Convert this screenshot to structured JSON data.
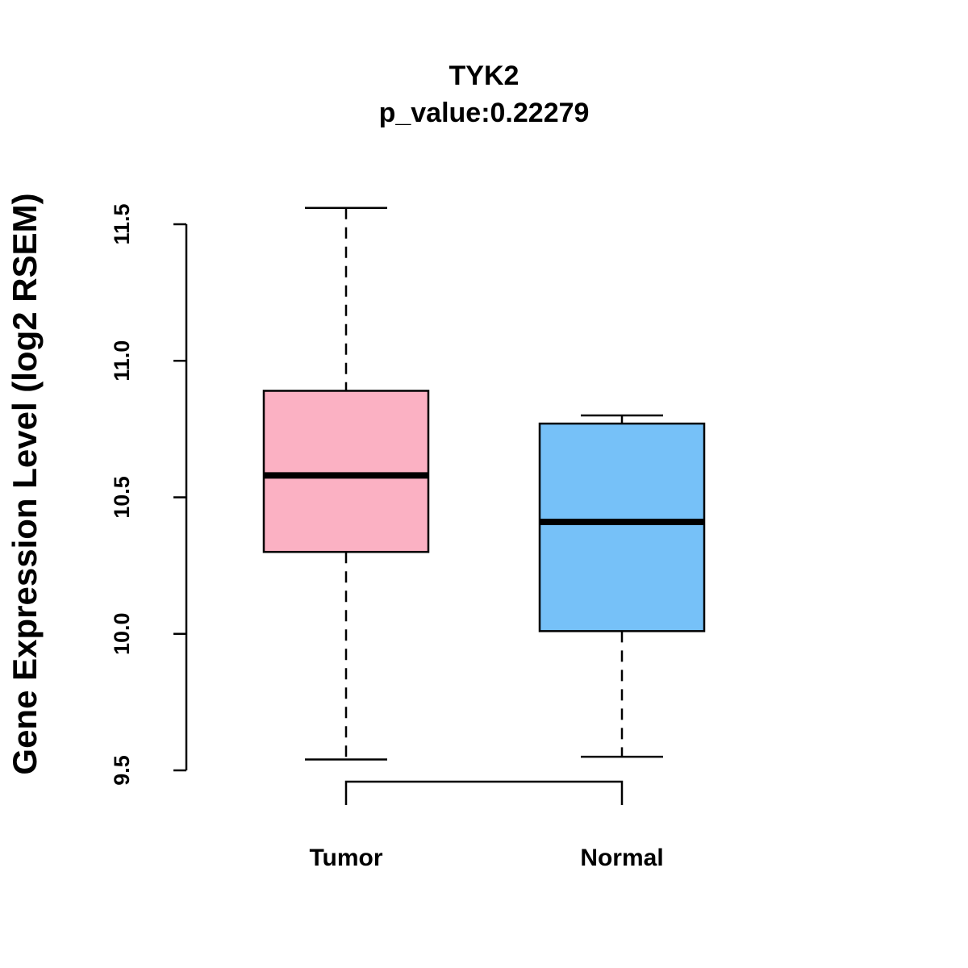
{
  "chart_data": {
    "type": "boxplot",
    "title": "TYK2",
    "subtitle": "p_value:0.22279",
    "xlabel": "",
    "ylabel": "Gene Expression Level (log2 RSEM)",
    "ylim": [
      9.5,
      11.5
    ],
    "yticks": [
      "9.5",
      "10.0",
      "10.5",
      "11.0",
      "11.5"
    ],
    "grid": false,
    "categories": [
      "Tumor",
      "Normal"
    ],
    "boxes": [
      {
        "name": "Tumor",
        "whisker_low": 9.54,
        "q1": 10.3,
        "median": 10.58,
        "q3": 10.89,
        "whisker_high": 11.56,
        "color": "#FBB1C3"
      },
      {
        "name": "Normal",
        "whisker_low": 9.55,
        "q1": 10.01,
        "median": 10.41,
        "q3": 10.77,
        "whisker_high": 10.8,
        "color": "#76C1F8"
      }
    ],
    "comparison_bracket": [
      "Tumor",
      "Normal"
    ]
  }
}
